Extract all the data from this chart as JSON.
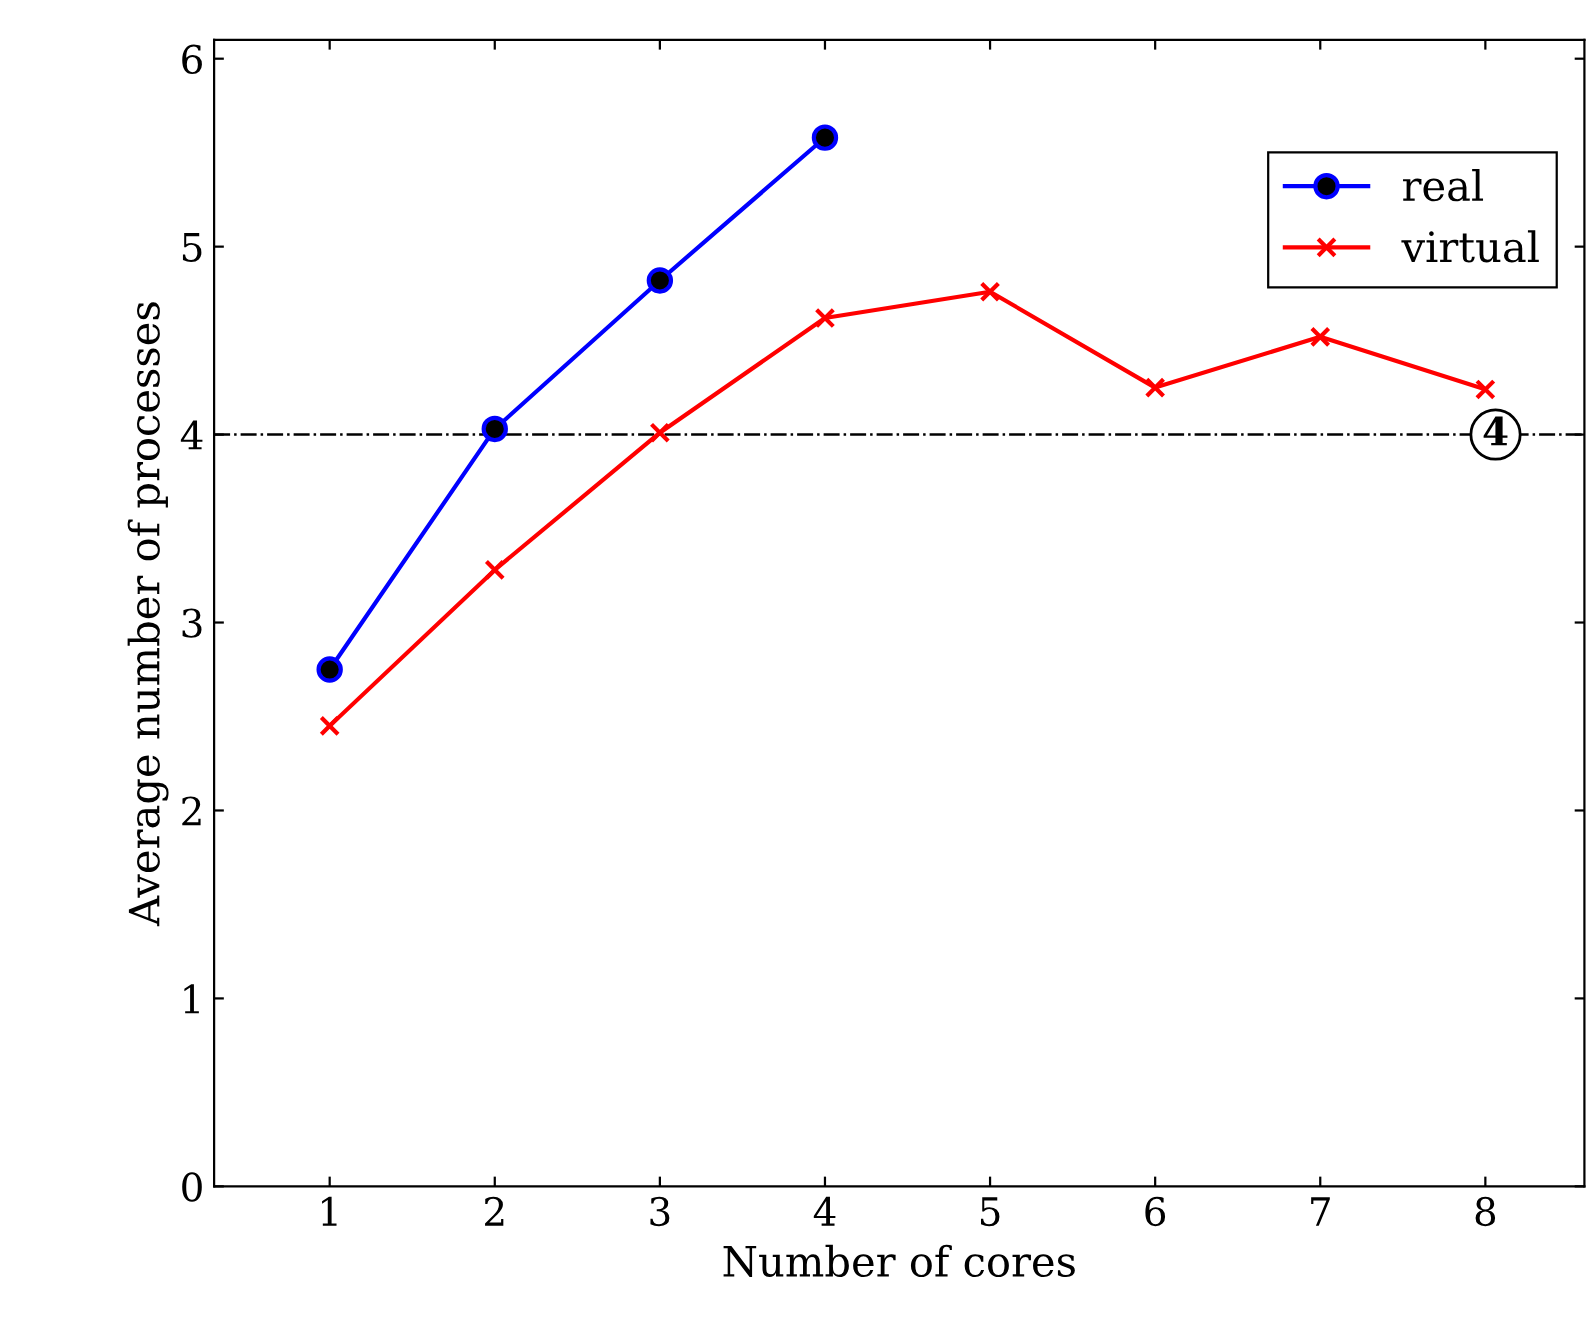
{
  "chart_data": {
    "type": "line",
    "xlabel": "Number of cores",
    "ylabel": "Average number of processes",
    "x": [
      1,
      2,
      3,
      4,
      5,
      6,
      7,
      8
    ],
    "series": [
      {
        "name": "real",
        "color": "#0000ff",
        "marker": "circle",
        "x": [
          1,
          2,
          3,
          4
        ],
        "values": [
          2.75,
          4.03,
          4.82,
          5.58
        ]
      },
      {
        "name": "virtual",
        "color": "#ff0000",
        "marker": "cross",
        "values": [
          2.45,
          3.28,
          4.01,
          4.62,
          4.76,
          4.25,
          4.52,
          4.24
        ]
      }
    ],
    "xlim": [
      0.3,
      8.6
    ],
    "xticks": [
      1,
      2,
      3,
      4,
      5,
      6,
      7,
      8
    ],
    "ylim": [
      0,
      6.1
    ],
    "yticks": [
      0,
      1,
      2,
      3,
      4,
      5,
      6
    ],
    "ref_lines": [
      {
        "axis": "y",
        "value": 4,
        "label": "4",
        "color": "#000000",
        "line_style": "dashdot"
      }
    ],
    "legend": "top right",
    "grid": false
  }
}
